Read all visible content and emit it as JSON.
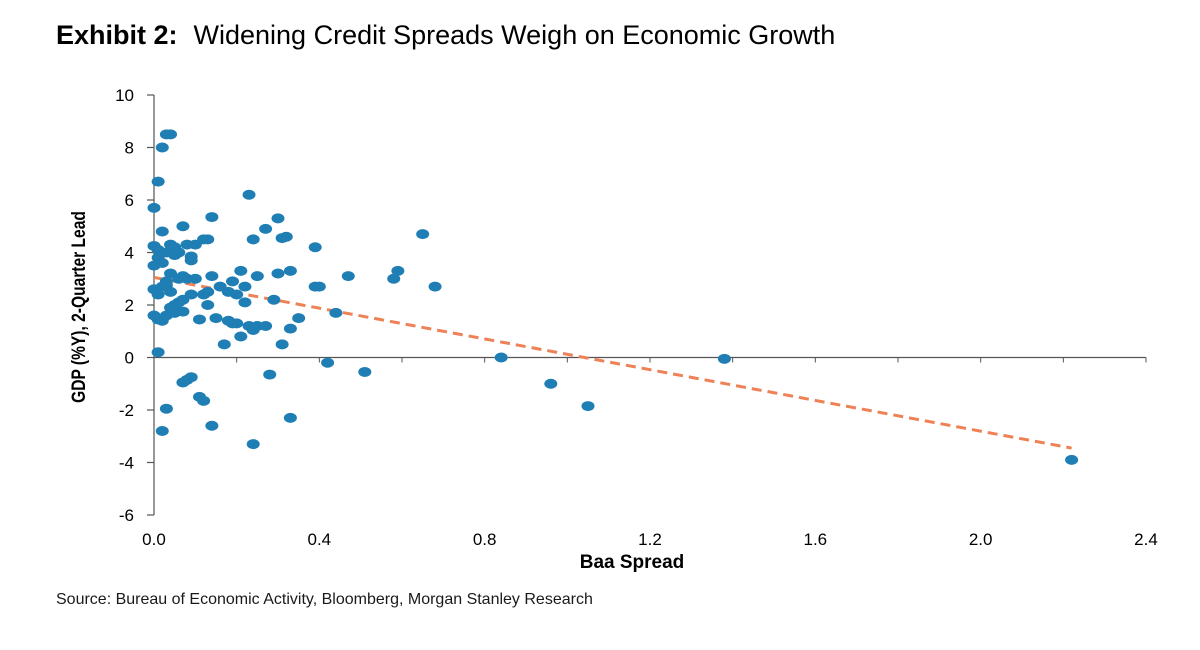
{
  "title": {
    "lead": "Exhibit 2:",
    "text": "Widening Credit Spreads Weigh on Economic Growth"
  },
  "source": "Source: Bureau of Economic Activity, Bloomberg, Morgan Stanley Research",
  "colors": {
    "points": "#1f7eb4",
    "trendline": "#ee8155",
    "axis": "#555555"
  },
  "chart_data": {
    "type": "scatter",
    "xlabel": "Baa Spread",
    "ylabel": "GDP (%Y), 2-Quarter Lead",
    "xlim": [
      0.0,
      2.4
    ],
    "ylim": [
      -6,
      10
    ],
    "xticks": [
      "0.0",
      "0.4",
      "0.8",
      "1.2",
      "1.6",
      "2.0",
      "2.4"
    ],
    "xtick_values": [
      0.0,
      0.4,
      0.8,
      1.2,
      1.6,
      2.0,
      2.4
    ],
    "yticks": [
      "10",
      "8",
      "6",
      "4",
      "2",
      "0",
      "-2",
      "-4",
      "-6"
    ],
    "ytick_values": [
      10,
      8,
      6,
      4,
      2,
      0,
      -2,
      -4,
      -6
    ],
    "grid": false,
    "trendline": {
      "style": "dashed",
      "points": [
        [
          0.0,
          3.05
        ],
        [
          2.22,
          -3.45
        ]
      ]
    },
    "points": [
      [
        0.0,
        5.7
      ],
      [
        0.01,
        6.7
      ],
      [
        0.02,
        8.0
      ],
      [
        0.03,
        8.5
      ],
      [
        0.04,
        8.5
      ],
      [
        0.0,
        4.25
      ],
      [
        0.01,
        4.1
      ],
      [
        0.02,
        4.8
      ],
      [
        0.03,
        4.0
      ],
      [
        0.04,
        4.3
      ],
      [
        0.05,
        4.2
      ],
      [
        0.06,
        4.0
      ],
      [
        0.07,
        5.0
      ],
      [
        0.08,
        4.3
      ],
      [
        0.09,
        3.7
      ],
      [
        0.1,
        4.3
      ],
      [
        0.0,
        3.5
      ],
      [
        0.01,
        3.8
      ],
      [
        0.02,
        3.6
      ],
      [
        0.03,
        2.9
      ],
      [
        0.04,
        3.2
      ],
      [
        0.05,
        3.9
      ],
      [
        0.06,
        3.0
      ],
      [
        0.07,
        3.1
      ],
      [
        0.08,
        3.0
      ],
      [
        0.09,
        3.85
      ],
      [
        0.1,
        3.0
      ],
      [
        0.0,
        2.6
      ],
      [
        0.01,
        2.4
      ],
      [
        0.02,
        2.7
      ],
      [
        0.03,
        2.75
      ],
      [
        0.04,
        2.5
      ],
      [
        0.05,
        2.0
      ],
      [
        0.06,
        2.1
      ],
      [
        0.07,
        2.2
      ],
      [
        0.09,
        2.4
      ],
      [
        0.0,
        1.6
      ],
      [
        0.01,
        1.45
      ],
      [
        0.02,
        1.4
      ],
      [
        0.03,
        1.6
      ],
      [
        0.04,
        1.9
      ],
      [
        0.05,
        1.7
      ],
      [
        0.07,
        1.75
      ],
      [
        0.01,
        0.2
      ],
      [
        0.02,
        -2.8
      ],
      [
        0.03,
        -1.95
      ],
      [
        0.07,
        -0.95
      ],
      [
        0.08,
        -0.85
      ],
      [
        0.09,
        -0.75
      ],
      [
        0.11,
        -1.5
      ],
      [
        0.12,
        -1.65
      ],
      [
        0.14,
        -2.6
      ],
      [
        0.12,
        4.5
      ],
      [
        0.13,
        4.5
      ],
      [
        0.14,
        5.35
      ],
      [
        0.12,
        2.4
      ],
      [
        0.13,
        2.5
      ],
      [
        0.14,
        3.1
      ],
      [
        0.15,
        1.5
      ],
      [
        0.11,
        1.45
      ],
      [
        0.13,
        2.0
      ],
      [
        0.16,
        2.7
      ],
      [
        0.18,
        2.5
      ],
      [
        0.19,
        2.9
      ],
      [
        0.2,
        2.4
      ],
      [
        0.21,
        3.3
      ],
      [
        0.22,
        2.1
      ],
      [
        0.22,
        2.7
      ],
      [
        0.19,
        1.3
      ],
      [
        0.2,
        1.3
      ],
      [
        0.21,
        0.8
      ],
      [
        0.17,
        0.5
      ],
      [
        0.18,
        1.4
      ],
      [
        0.23,
        6.2
      ],
      [
        0.24,
        4.5
      ],
      [
        0.25,
        3.1
      ],
      [
        0.23,
        1.2
      ],
      [
        0.24,
        1.05
      ],
      [
        0.25,
        1.2
      ],
      [
        0.27,
        1.2
      ],
      [
        0.24,
        -3.3
      ],
      [
        0.28,
        -0.65
      ],
      [
        0.27,
        4.9
      ],
      [
        0.29,
        2.2
      ],
      [
        0.3,
        3.2
      ],
      [
        0.3,
        5.3
      ],
      [
        0.31,
        4.55
      ],
      [
        0.32,
        4.6
      ],
      [
        0.31,
        0.5
      ],
      [
        0.33,
        1.1
      ],
      [
        0.33,
        -2.3
      ],
      [
        0.33,
        3.3
      ],
      [
        0.35,
        1.5
      ],
      [
        0.39,
        4.2
      ],
      [
        0.39,
        2.7
      ],
      [
        0.4,
        2.7
      ],
      [
        0.42,
        -0.2
      ],
      [
        0.44,
        1.7
      ],
      [
        0.47,
        3.1
      ],
      [
        0.51,
        -0.55
      ],
      [
        0.58,
        3.0
      ],
      [
        0.59,
        3.3
      ],
      [
        0.65,
        4.7
      ],
      [
        0.68,
        2.7
      ],
      [
        0.84,
        0.0
      ],
      [
        0.96,
        -1.0
      ],
      [
        1.05,
        -1.85
      ],
      [
        1.38,
        -0.05
      ],
      [
        2.22,
        -3.9
      ]
    ]
  }
}
